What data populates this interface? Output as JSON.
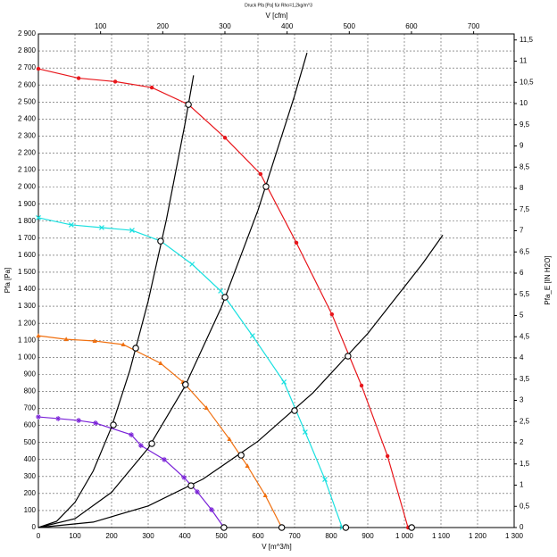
{
  "chart_data": {
    "type": "line",
    "title": "Druck Pfa [Pa] für Rho=1,2kg/m^3",
    "x_label": "V [m^3/h]",
    "x2_label": "V [cfm]",
    "y_label": "Pfa [Pa]",
    "y2_label": "Pfa_E [IN H2O]",
    "grid": true,
    "xlim": [
      0,
      1300
    ],
    "xticks": [
      0,
      100,
      200,
      300,
      400,
      500,
      600,
      700,
      800,
      900,
      {
        "value": 1000,
        "label": "1 000"
      },
      {
        "value": 1100,
        "label": "1 100"
      },
      {
        "value": 1200,
        "label": "1 200"
      },
      {
        "value": 1300,
        "label": "1 300"
      }
    ],
    "x2lim": [
      0,
      765.15
    ],
    "x2ticks": [
      100,
      200,
      300,
      400,
      500,
      600,
      700
    ],
    "ylim": [
      0,
      2900
    ],
    "yticks": [
      0,
      100,
      200,
      300,
      400,
      500,
      600,
      700,
      800,
      900,
      {
        "value": 1000,
        "label": "1 000"
      },
      {
        "value": 1100,
        "label": "1 100"
      },
      {
        "value": 1200,
        "label": "1 200"
      },
      {
        "value": 1300,
        "label": "1 300"
      },
      {
        "value": 1400,
        "label": "1 400"
      },
      {
        "value": 1500,
        "label": "1 500"
      },
      {
        "value": 1600,
        "label": "1 600"
      },
      {
        "value": 1700,
        "label": "1 700"
      },
      {
        "value": 1800,
        "label": "1 800"
      },
      {
        "value": 1900,
        "label": "1 900"
      },
      {
        "value": 2000,
        "label": "2 000"
      },
      {
        "value": 2100,
        "label": "2 100"
      },
      {
        "value": 2200,
        "label": "2 200"
      },
      {
        "value": 2300,
        "label": "2 300"
      },
      {
        "value": 2400,
        "label": "2 400"
      },
      {
        "value": 2500,
        "label": "2 500"
      },
      {
        "value": 2600,
        "label": "2 600"
      },
      {
        "value": 2700,
        "label": "2 700"
      },
      {
        "value": 2800,
        "label": "2 800"
      },
      {
        "value": 2900,
        "label": "2 900"
      }
    ],
    "y2lim": [
      0,
      11.642
    ],
    "y2ticks": [
      0,
      {
        "value": 0.5,
        "label": "0,5"
      },
      1,
      {
        "value": 1.5,
        "label": "1,5"
      },
      2,
      {
        "value": 2.5,
        "label": "2,5"
      },
      3,
      {
        "value": 3.5,
        "label": "3,5"
      },
      4,
      {
        "value": 4.5,
        "label": "4,5"
      },
      5,
      {
        "value": 5.5,
        "label": "5,5"
      },
      6,
      {
        "value": 6.5,
        "label": "6,5"
      },
      7,
      {
        "value": 7.5,
        "label": "7,5"
      },
      8,
      {
        "value": 8.5,
        "label": "8,5"
      },
      9,
      {
        "value": 9.5,
        "label": "9,5"
      },
      10,
      {
        "value": 10.5,
        "label": "10,5"
      },
      11,
      {
        "value": 11.5,
        "label": "11,5"
      }
    ],
    "series": [
      {
        "color": "#e8161b",
        "marker": "circle",
        "x": [
          0,
          110,
          210,
          310,
          410,
          510,
          607,
          705,
          802,
          883,
          954,
          1010
        ],
        "values": [
          2695,
          2640,
          2620,
          2585,
          2485,
          2290,
          2077,
          1673,
          1253,
          834,
          420,
          0
        ]
      },
      {
        "color": "#19e0e0",
        "marker": "x",
        "x": [
          0,
          90,
          173,
          256,
          334,
          420,
          498,
          585,
          671,
          729,
          783,
          830
        ],
        "values": [
          1820,
          1778,
          1762,
          1746,
          1683,
          1547,
          1390,
          1127,
          855,
          561,
          283,
          0
        ]
      },
      {
        "color": "#f07010",
        "marker": "triangle",
        "x": [
          0,
          76,
          154,
          232,
          334,
          395,
          459,
          522,
          571,
          620,
          665
        ],
        "values": [
          1127,
          1106,
          1096,
          1075,
          965,
          855,
          703,
          519,
          362,
          189,
          0
        ]
      },
      {
        "color": "#7a22d8",
        "marker": "star",
        "x": [
          0,
          54,
          110,
          156,
          254,
          280,
          344,
          398,
          434,
          473,
          507
        ],
        "values": [
          650,
          640,
          629,
          614,
          545,
          482,
          399,
          294,
          210,
          105,
          0
        ]
      },
      {
        "color": "#000000",
        "marker": "none",
        "x": [
          0,
          50,
          100,
          150,
          200,
          250,
          300,
          350,
          400,
          424
        ],
        "values": [
          0,
          37,
          148,
          333,
          591,
          924,
          1330,
          1811,
          2365,
          2657
        ]
      },
      {
        "color": "#000000",
        "marker": "none",
        "x": [
          0,
          100,
          200,
          300,
          400,
          500,
          600,
          700,
          734
        ],
        "values": [
          0,
          52,
          207,
          466,
          828,
          1294,
          1864,
          2537,
          2789
        ]
      },
      {
        "color": "#000000",
        "marker": "none",
        "x": [
          0,
          150,
          300,
          450,
          600,
          750,
          900,
          1050,
          1105
        ],
        "values": [
          0,
          32,
          127,
          285,
          507,
          791,
          1140,
          1551,
          1718
        ]
      }
    ],
    "operating_points": {
      "x": [
        410,
        334,
        266,
        205,
        622,
        510,
        402,
        310,
        846,
        700,
        554,
        417,
        507,
        665,
        840,
        1020
      ],
      "values": [
        2485,
        1683,
        1054,
        603,
        2003,
        1353,
        840,
        493,
        1007,
        687,
        425,
        246,
        0,
        0,
        0,
        0
      ]
    }
  }
}
